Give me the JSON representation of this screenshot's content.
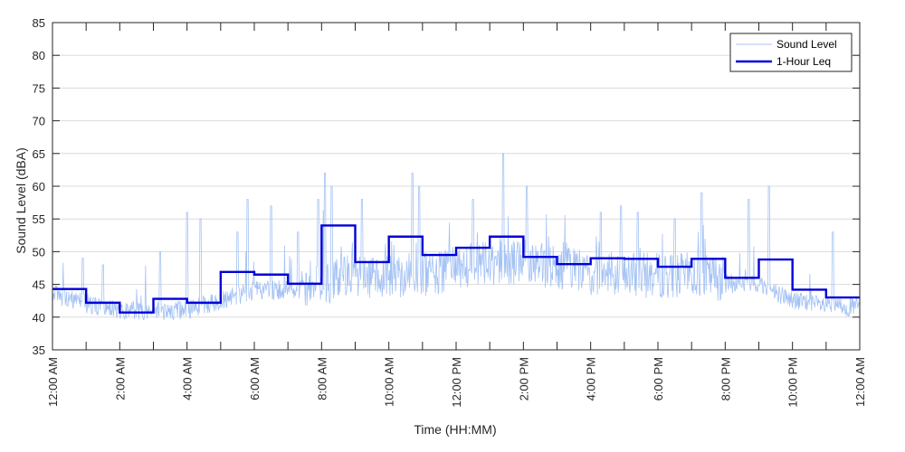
{
  "chart_data": {
    "type": "line",
    "xlabel": "Time (HH:MM)",
    "ylabel": "Sound Level (dBA)",
    "xlim": [
      0,
      24
    ],
    "ylim": [
      35,
      85
    ],
    "y_ticks": [
      35,
      40,
      45,
      50,
      55,
      60,
      65,
      70,
      75,
      80,
      85
    ],
    "x_tick_hours": [
      0,
      2,
      4,
      6,
      8,
      10,
      12,
      14,
      16,
      18,
      20,
      22,
      24
    ],
    "x_tick_labels": [
      "12:00 AM",
      "2:00 AM",
      "4:00 AM",
      "6:00 AM",
      "8:00 AM",
      "10:00 AM",
      "12:00 PM",
      "2:00 PM",
      "4:00 PM",
      "6:00 PM",
      "8:00 PM",
      "10:00 PM",
      "12:00 AM"
    ],
    "grid": "horizontal",
    "legend_position": "top-right",
    "colors": {
      "sound_level": "#a4c2f4",
      "leq": "#0000d9",
      "grid": "#dcdcdc",
      "axis": "#262626"
    },
    "series": [
      {
        "name": "Sound Level",
        "kind": "noisy-line",
        "baseline_hours": [
          0,
          1,
          2,
          3,
          4,
          5,
          6,
          7,
          8,
          9,
          10,
          11,
          12,
          13,
          14,
          15,
          16,
          17,
          18,
          19,
          20,
          21,
          22,
          23,
          24
        ],
        "baseline_values": [
          43,
          41.5,
          40.5,
          40.3,
          40.5,
          42,
          43.5,
          43.5,
          44,
          45,
          45,
          45,
          46,
          47,
          47,
          46,
          45.5,
          45,
          45,
          45,
          44.5,
          44.5,
          42,
          41,
          41
        ],
        "spike_hours": [
          0.9,
          1.5,
          3.2,
          4.0,
          4.4,
          5.5,
          5.8,
          6.5,
          7.3,
          7.9,
          8.1,
          8.3,
          9.2,
          10.7,
          10.9,
          12.5,
          13.4,
          14.1,
          16.3,
          16.9,
          17.4,
          18.5,
          19.3,
          20.7,
          21.3,
          23.2
        ],
        "spike_values": [
          49,
          48,
          50,
          56,
          55,
          53,
          58,
          57,
          53,
          58,
          62,
          60,
          58,
          62,
          60,
          58,
          65,
          60,
          56,
          57,
          56,
          55,
          59,
          58,
          60,
          53
        ]
      },
      {
        "name": "1-Hour Leq",
        "kind": "step",
        "hours": [
          0,
          1,
          2,
          3,
          4,
          5,
          6,
          7,
          8,
          9,
          10,
          11,
          12,
          13,
          14,
          15,
          16,
          17,
          18,
          19,
          20,
          21,
          22,
          23
        ],
        "values": [
          44.3,
          42.2,
          40.7,
          42.8,
          42.2,
          46.9,
          46.5,
          45.1,
          54.0,
          48.4,
          52.3,
          49.5,
          50.6,
          52.3,
          49.2,
          48.1,
          49.0,
          48.9,
          47.7,
          48.9,
          46.0,
          48.8,
          44.2,
          43.0
        ]
      }
    ]
  }
}
